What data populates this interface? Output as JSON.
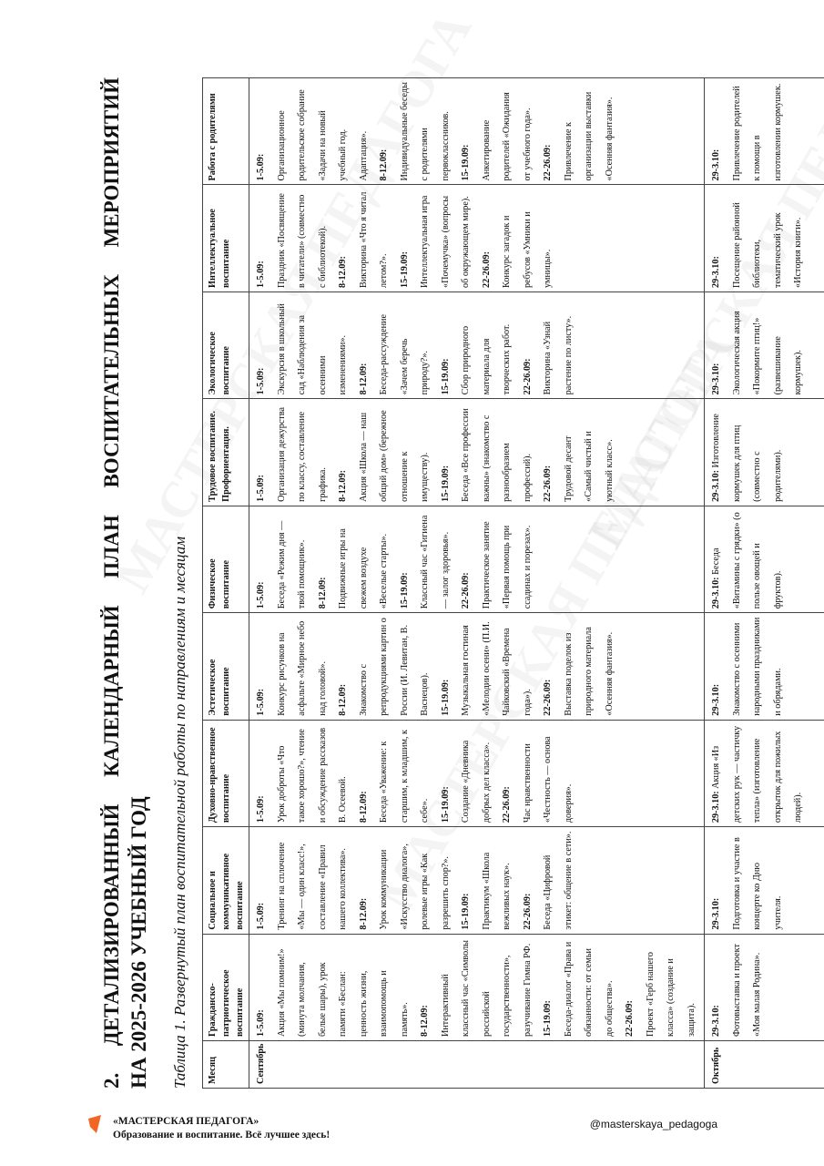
{
  "watermark": "МАСТЕРСКАЯ ПЕДАГОГА",
  "title": {
    "line1": "2. ДЕТАЛИЗИРОВАННЫЙ КАЛЕНДАРНЫЙ ПЛАН ВОСПИТАТЕЛЬНЫХ МЕРОПРИЯТИЙ",
    "line2": "НА 2025-2026 УЧЕБНЫЙ ГОД"
  },
  "subtitle": "Таблица 1. Развернутый план воспитательной работы по направлениям и месяцам",
  "table": {
    "headers": [
      "Месяц",
      "Гражданско-патриотическое воспитание",
      "Социальное и коммуникативное воспитание",
      "Духовно-нравственное воспитание",
      "Эстетическое воспитание",
      "Физическое воспитание",
      "Трудовое воспитание. Профориентация.",
      "Экологическое воспитание",
      "Интеллектуальное воспитание",
      "Работа с родителями"
    ],
    "rows": [
      {
        "month": "Сентябрь",
        "cells": [
          [
            {
              "date": "1-5.09:",
              "text": "Акция «Мы помним!» (минута молчания, белые шары), урок памяти «Беслан: ценность жизни, взаимопомощь и память»."
            },
            {
              "date": "8-12.09:",
              "text": "Интерактивный классный час «Символы российской государственности», разучивание Гимна РФ."
            },
            {
              "date": "15-19.09:",
              "text": "Беседа-диалог «Права и обязанности: от семьи до общества»."
            },
            {
              "date": "22-26.09:",
              "text": "Проект «Герб нашего класса» (создание и защита)."
            }
          ],
          [
            {
              "date": "1-5.09:",
              "text": "Тренинг на сплочение «Мы — один класс!», составление «Правил нашего коллектива»."
            },
            {
              "date": "8-12.09:",
              "text": "Урок коммуникации «Искусство диалога», ролевые игры «Как разрешить спор?»."
            },
            {
              "date": "15-19.09:",
              "text": "Практикум «Школа вежливых наук»."
            },
            {
              "date": "22-26.09:",
              "text": "Беседа «Цифровой этикет: общение в сети»."
            }
          ],
          [
            {
              "date": "1-5.09:",
              "text": "Урок доброты «Что такое хорошо?», чтение и обсуждение рассказов В. Осеевой."
            },
            {
              "date": "8-12.09:",
              "text": "Беседа «Уважение: к старшим, к младшим, к себе»."
            },
            {
              "date": "15-19.09:",
              "text": "Создание «Дневника добрых дел класса»."
            },
            {
              "date": "22-26.09:",
              "text": "Час нравственности «Честность — основа доверия»."
            }
          ],
          [
            {
              "date": "1-5.09:",
              "text": "Конкурс рисунков на асфальте «Мирное небо над головой»."
            },
            {
              "date": "8-12.09:",
              "text": "Знакомство с репродукциями картин о России (И. Левитан, В. Васнецов)."
            },
            {
              "date": "15-19.09:",
              "text": "Музыкальная гостиная «Мелодии осени» (П.И. Чайковский «Времена года»)."
            },
            {
              "date": "22-26.09:",
              "text": "Выставка поделок из природного материала «Осенняя фантазия»."
            }
          ],
          [
            {
              "date": "1-5.09:",
              "text": "Беседа «Режим дня — твой помощник»."
            },
            {
              "date": "8-12.09:",
              "text": "Подвижные игры на свежем воздухе «Веселые старты»."
            },
            {
              "date": "15-19.09:",
              "text": "Классный час «Гигиена — залог здоровья»."
            },
            {
              "date": "22-26.09:",
              "text": "Практическое занятие «Первая помощь при ссадинах и порезах»."
            }
          ],
          [
            {
              "date": "1-5.09:",
              "text": "Организация дежурства по классу, составление графика."
            },
            {
              "date": "8-12.09:",
              "text": "Акция «Школа — наш общий дом» (бережное отношение к имуществу)."
            },
            {
              "date": "15-19.09:",
              "text": "Беседа «Все профессии важны» (знакомство с разнообразием профессий)."
            },
            {
              "date": "22-26.09:",
              "text": "Трудовой десант «Самый чистый и уютный класс»."
            }
          ],
          [
            {
              "date": "1-5.09:",
              "text": "Экскурсия в школьный сад «Наблюдения за осенними изменениями»."
            },
            {
              "date": "8-12.09:",
              "text": "Беседа-рассуждение «Зачем беречь природу?»."
            },
            {
              "date": "15-19.09:",
              "text": "Сбор природного материала для творческих работ."
            },
            {
              "date": "22-26.09:",
              "text": "Викторина «Узнай растение по листу»."
            }
          ],
          [
            {
              "date": "1-5.09:",
              "text": "Праздник «Посвящение в читатели» (совместно с библиотекой)."
            },
            {
              "date": "8-12.09:",
              "text": "Викторина «Что я читал летом?»."
            },
            {
              "date": "15-19.09:",
              "text": "Интеллектуальная игра «Почемучка» (вопросы об окружающем мире)."
            },
            {
              "date": "22-26.09:",
              "text": "Конкурс загадок и ребусов «Умники и умницы»."
            }
          ],
          [
            {
              "date": "1-5.09:",
              "text": "Организационное родительское собрание «Задачи на новый учебный год. Адаптация»."
            },
            {
              "date": "8-12.09:",
              "text": "Индивидуальные беседы с родителями первоклассников."
            },
            {
              "date": "15-19.09:",
              "text": "Анкетирование родителей «Ожидания от учебного года»."
            },
            {
              "date": "22-26.09:",
              "text": "Привлечение к организации выставки «Осенняя фантазия»."
            }
          ]
        ]
      },
      {
        "month": "Октябрь",
        "cells": [
          [
            {
              "date": "29-3.10:",
              "text": "Фотовыставка и проект «Моя малая Родина»."
            }
          ],
          [
            {
              "date": "29-3.10:",
              "text": "Подготовка и участие в концерте ко Дню учителя."
            }
          ],
          [
            {
              "date": "29-3.10:",
              "inline": true,
              "text": "Акция «Из детских рук — частичку тепла» (изготовление открыток для пожилых людей)."
            }
          ],
          [
            {
              "date": "29-3.10:",
              "text": "Знакомство с осенними народными праздниками и обрядами."
            }
          ],
          [
            {
              "date": "29-3.10:",
              "inline": true,
              "text": "Беседа «Витамины с грядки» (о пользе овощей и фруктов)."
            }
          ],
          [
            {
              "date": "29-3.10:",
              "inline": true,
              "text": "Изготовление кормушек для птиц (совместно с родителями)."
            }
          ],
          [
            {
              "date": "29-3.10:",
              "text": "Экологическая акция «Покормите птиц!» (развешивание кормушек)."
            }
          ],
          [
            {
              "date": "29-3.10:",
              "text": "Посещение районной библиотеки, тематический урок «История книги»."
            }
          ],
          [
            {
              "date": "29-3.10:",
              "text": "Привлечение родителей к помощи в изготовлении кормушек."
            }
          ]
        ]
      }
    ]
  },
  "footer": {
    "brand": "«МАСТЕРСКАЯ ПЕДАГОГА»",
    "tagline": "Образование и воспитание. Всё лучшее здесь!",
    "handle": "@masterskaya_pedagoga",
    "logo_color": "#f26522"
  }
}
